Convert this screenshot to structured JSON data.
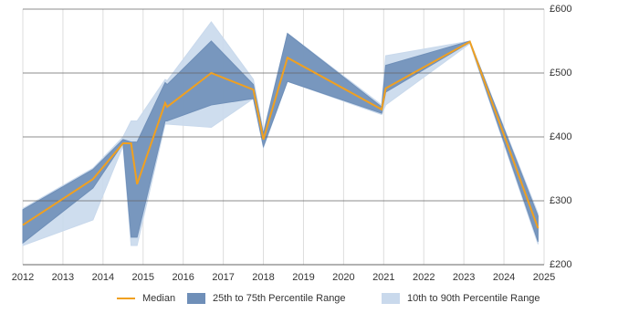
{
  "chart_data": {
    "type": "line",
    "x": [
      2012,
      2013.75,
      2014.5,
      2014.7,
      2014.85,
      2015.55,
      2015.6,
      2016.7,
      2017.75,
      2018.0,
      2018.6,
      2020.95,
      2021.05,
      2023.15,
      2024.85
    ],
    "series": [
      {
        "name": "Median",
        "color": "#f0a020",
        "values": [
          262,
          334,
          390,
          390,
          326,
          453,
          447,
          500,
          474,
          396,
          524,
          443,
          476,
          549,
          257
        ]
      },
      {
        "name": "25th to 75th Percentile Range",
        "color": "#6f8fb8",
        "band": true,
        "high": [
          286,
          349,
          396,
          392,
          392,
          485,
          482,
          550,
          482,
          405,
          562,
          447,
          512,
          550,
          276
        ],
        "low": [
          234,
          320,
          390,
          243,
          243,
          425,
          425,
          450,
          460,
          385,
          487,
          437,
          470,
          548,
          236
        ]
      },
      {
        "name": "10th to 90th Percentile Range",
        "color": "#c9d9ec",
        "band": true,
        "high": [
          288,
          351,
          400,
          425,
          425,
          490,
          488,
          580,
          490,
          408,
          562,
          450,
          527,
          550,
          280
        ],
        "low": [
          230,
          270,
          386,
          230,
          230,
          420,
          420,
          415,
          460,
          383,
          487,
          435,
          450,
          546,
          232
        ]
      }
    ],
    "xlim": [
      2012,
      2025
    ],
    "xticks": [
      2012,
      2013,
      2014,
      2015,
      2016,
      2017,
      2018,
      2019,
      2020,
      2021,
      2022,
      2023,
      2024,
      2025
    ],
    "ylim": [
      200,
      600
    ],
    "yticks": [
      {
        "value": 200,
        "label": "£200"
      },
      {
        "value": 300,
        "label": "£300"
      },
      {
        "value": 400,
        "label": "£400"
      },
      {
        "value": 500,
        "label": "£500"
      },
      {
        "value": 600,
        "label": "£600"
      }
    ],
    "grid": true,
    "legend": "bottom"
  }
}
